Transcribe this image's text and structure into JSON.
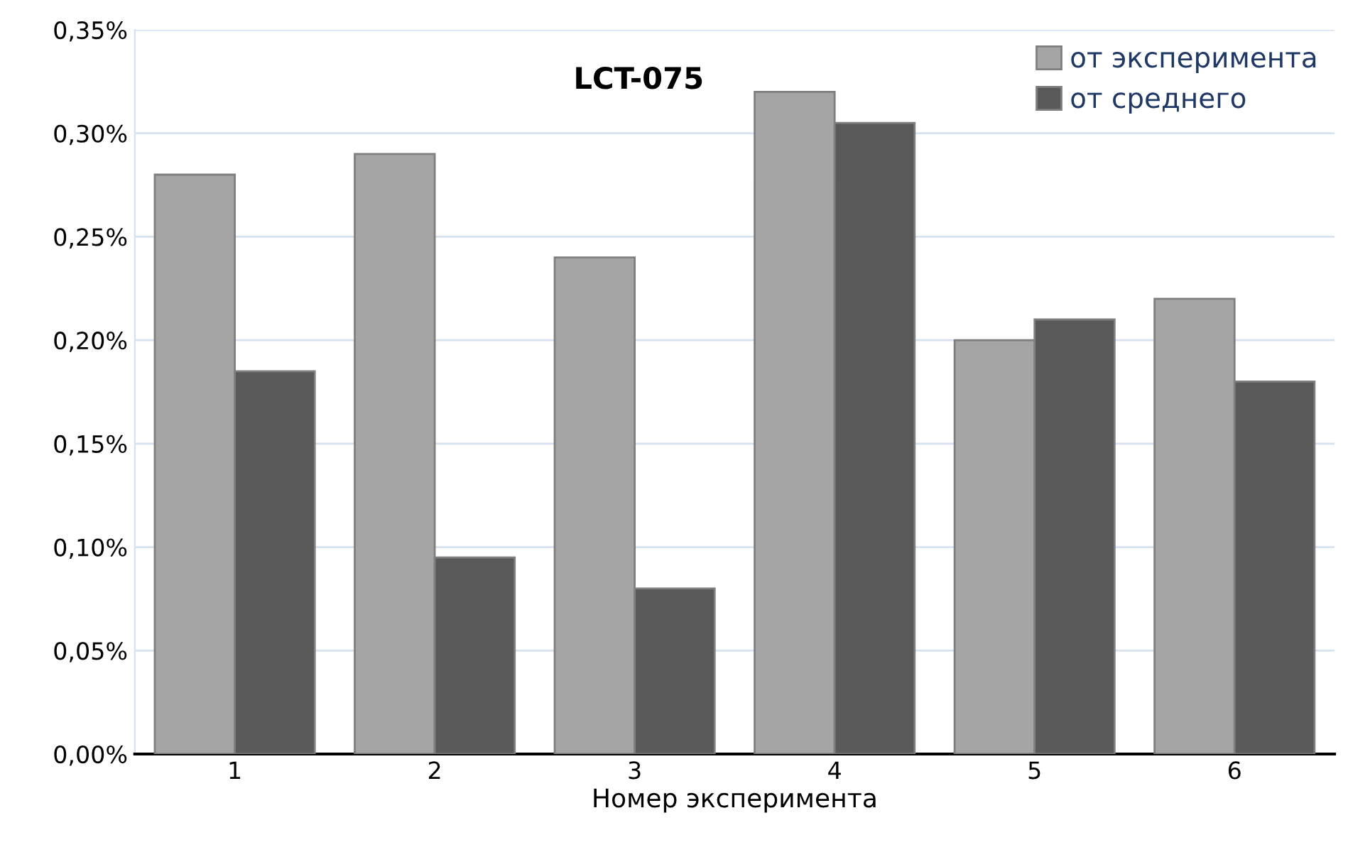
{
  "chart_data": {
    "type": "bar",
    "title": "LCT-075",
    "xlabel": "Номер эксперимента",
    "categories": [
      "1",
      "2",
      "3",
      "4",
      "5",
      "6"
    ],
    "series": [
      {
        "name": "от эксперимента",
        "color": "#a5a5a5",
        "values": [
          0.28,
          0.29,
          0.24,
          0.32,
          0.2,
          0.22
        ]
      },
      {
        "name": "от среднего",
        "color": "#595959",
        "values": [
          0.185,
          0.095,
          0.08,
          0.305,
          0.21,
          0.18
        ]
      }
    ],
    "ylim": [
      0,
      0.35
    ],
    "yticks": [
      {
        "value": 0,
        "label": "0,00%"
      },
      {
        "value": 0.05,
        "label": "0,05%"
      },
      {
        "value": 0.1,
        "label": "0,10%"
      },
      {
        "value": 0.15,
        "label": "0,15%"
      },
      {
        "value": 0.2,
        "label": "0,20%"
      },
      {
        "value": 0.25,
        "label": "0,25%"
      },
      {
        "value": 0.3,
        "label": "0,30%"
      },
      {
        "value": 0.35,
        "label": "0,35%"
      }
    ],
    "grid": "y",
    "legend": "top right"
  }
}
